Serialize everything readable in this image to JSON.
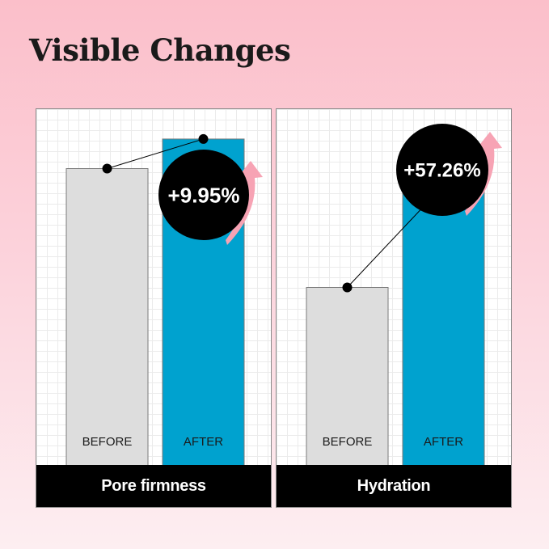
{
  "title": "Visible Changes",
  "colors": {
    "before_bar": "#dddddd",
    "after_bar": "#00a2cf",
    "badge": "#000000",
    "arrow": "#f7a3b4"
  },
  "chart_data": [
    {
      "type": "bar",
      "category_label": "Pore firmness",
      "categories": [
        "BEFORE",
        "AFTER"
      ],
      "values": [
        100,
        109.95
      ],
      "change_label": "+9.95%",
      "ylim": [
        0,
        120
      ],
      "grid": true
    },
    {
      "type": "bar",
      "category_label": "Hydration",
      "categories": [
        "BEFORE",
        "AFTER"
      ],
      "values": [
        100,
        157.26
      ],
      "change_label": "+57.26%",
      "ylim": [
        0,
        200
      ],
      "grid": true
    }
  ]
}
